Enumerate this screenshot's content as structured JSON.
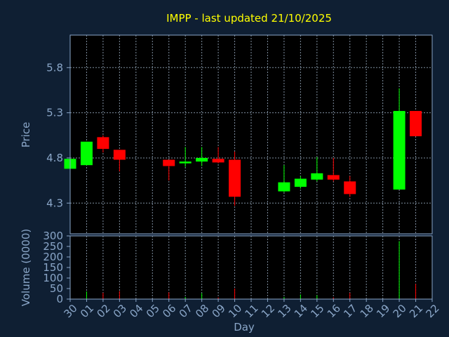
{
  "chart_data": [
    {
      "type": "candlestick",
      "title": "IMPP - last updated 21/10/2025",
      "ylabel": "Price",
      "xlabel": "",
      "ylim": [
        3.96,
        6.16
      ],
      "yticks": [
        "5.8",
        "5.3",
        "4.8",
        "4.3"
      ],
      "grid": true,
      "colors": {
        "up": "#00ff00",
        "down": "#ff0000",
        "background": "#0f1f33",
        "panel": "#000000",
        "grid": "#7f8fa0",
        "title": "#ffff00",
        "text": "#8aa6c8"
      },
      "x": [
        "30",
        "01",
        "02",
        "03",
        "06",
        "07",
        "08",
        "09",
        "10",
        "13",
        "14",
        "15",
        "16",
        "17",
        "20",
        "21"
      ],
      "series": [
        {
          "x": "30",
          "open": 4.68,
          "high": 4.8,
          "low": 4.68,
          "close": 4.79
        },
        {
          "x": "01",
          "open": 4.72,
          "high": 4.98,
          "low": 4.72,
          "close": 4.98
        },
        {
          "x": "02",
          "open": 5.03,
          "high": 5.05,
          "low": 4.86,
          "close": 4.9
        },
        {
          "x": "03",
          "open": 4.89,
          "high": 4.89,
          "low": 4.65,
          "close": 4.78
        },
        {
          "x": "06",
          "open": 4.78,
          "high": 4.78,
          "low": 4.55,
          "close": 4.71
        },
        {
          "x": "07",
          "open": 4.74,
          "high": 4.92,
          "low": 4.7,
          "close": 4.76
        },
        {
          "x": "08",
          "open": 4.76,
          "high": 4.92,
          "low": 4.71,
          "close": 4.8
        },
        {
          "x": "09",
          "open": 4.79,
          "high": 4.92,
          "low": 4.74,
          "close": 4.75
        },
        {
          "x": "10",
          "open": 4.78,
          "high": 4.87,
          "low": 4.27,
          "close": 4.37
        },
        {
          "x": "13",
          "open": 4.43,
          "high": 4.72,
          "low": 4.42,
          "close": 4.53
        },
        {
          "x": "14",
          "open": 4.48,
          "high": 4.6,
          "low": 4.46,
          "close": 4.57
        },
        {
          "x": "15",
          "open": 4.56,
          "high": 4.81,
          "low": 4.54,
          "close": 4.63
        },
        {
          "x": "16",
          "open": 4.61,
          "high": 4.8,
          "low": 4.54,
          "close": 4.56
        },
        {
          "x": "17",
          "open": 4.54,
          "high": 4.6,
          "low": 4.37,
          "close": 4.4
        },
        {
          "x": "20",
          "open": 4.45,
          "high": 5.57,
          "low": 4.45,
          "close": 5.32
        },
        {
          "x": "21",
          "open": 5.32,
          "high": 5.32,
          "low": 5.04,
          "close": 5.04
        }
      ]
    },
    {
      "type": "bar",
      "title": "",
      "ylabel": "Volume (0000)",
      "xlabel": "Day",
      "ylim": [
        0,
        300
      ],
      "yticks": [
        "300",
        "250",
        "200",
        "150",
        "100",
        "50",
        "0"
      ],
      "categories": [
        "30",
        "01",
        "02",
        "03",
        "04",
        "05",
        "06",
        "07",
        "08",
        "09",
        "10",
        "11",
        "12",
        "13",
        "14",
        "15",
        "16",
        "17",
        "18",
        "19",
        "20",
        "21",
        "22"
      ],
      "values": [
        5,
        36,
        30,
        38,
        0,
        0,
        32,
        10,
        28,
        8,
        50,
        0,
        0,
        10,
        22,
        18,
        8,
        30,
        0,
        0,
        275,
        72,
        0
      ],
      "bar_colors": [
        "#00ff00",
        "#00ff00",
        "#ff0000",
        "#ff0000",
        "#ff0000",
        "#ff0000",
        "#ff0000",
        "#00ff00",
        "#00ff00",
        "#ff0000",
        "#ff0000",
        "#ff0000",
        "#ff0000",
        "#00ff00",
        "#00ff00",
        "#00ff00",
        "#ff0000",
        "#ff0000",
        "#ff0000",
        "#ff0000",
        "#00ff00",
        "#ff0000",
        "#ff0000"
      ]
    }
  ]
}
